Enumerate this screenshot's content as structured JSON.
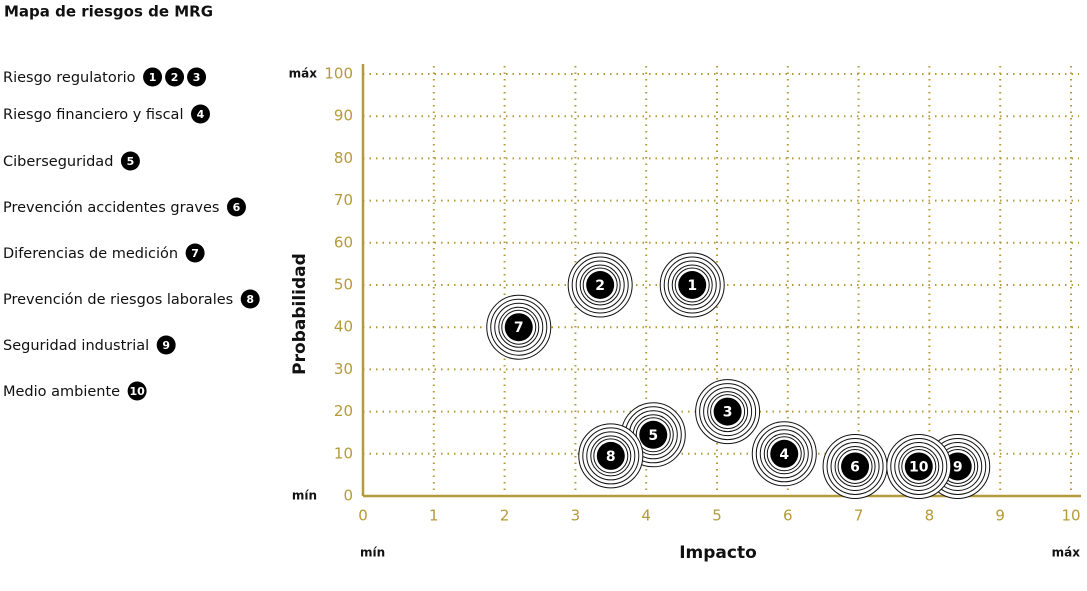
{
  "chart_data": {
    "type": "scatter",
    "title": "Mapa de riesgos de MRG",
    "xlabel": "Impacto",
    "ylabel": "Probabilidad",
    "annotations": {
      "y_max": "máx",
      "y_min": "mín",
      "x_min": "mín",
      "x_max": "máx"
    },
    "xlim": [
      0,
      10
    ],
    "ylim": [
      0,
      100
    ],
    "xticks": [
      0,
      1,
      2,
      3,
      4,
      5,
      6,
      7,
      8,
      9,
      10
    ],
    "yticks": [
      0,
      10,
      20,
      30,
      40,
      50,
      60,
      70,
      80,
      90,
      100
    ],
    "grid": true,
    "color": "#b59a3a",
    "series": [
      {
        "labels": [
          "1",
          "2",
          "3",
          "4",
          "5",
          "6",
          "7",
          "8",
          "9",
          "10"
        ],
        "x": [
          4.65,
          3.35,
          5.15,
          5.95,
          4.1,
          6.95,
          2.2,
          3.5,
          8.4,
          7.85
        ],
        "values": [
          50,
          50,
          20,
          10,
          14.5,
          7,
          40,
          9.5,
          7,
          7
        ],
        "color": "#000000"
      }
    ],
    "legend": [
      {
        "name": "Riesgo regulatorio",
        "markers": [
          "1",
          "2",
          "3"
        ]
      },
      {
        "name": "Riesgo financiero y fiscal",
        "markers": [
          "4"
        ]
      },
      {
        "name": "Ciberseguridad",
        "markers": [
          "5"
        ]
      },
      {
        "name": "Prevención accidentes graves",
        "markers": [
          "6"
        ]
      },
      {
        "name": "Diferencias de medición",
        "markers": [
          "7"
        ]
      },
      {
        "name": "Prevención de riesgos laborales",
        "markers": [
          "8"
        ]
      },
      {
        "name": "Seguridad industrial",
        "markers": [
          "9"
        ]
      },
      {
        "name": "Medio ambiente",
        "markers": [
          "10"
        ]
      }
    ]
  }
}
